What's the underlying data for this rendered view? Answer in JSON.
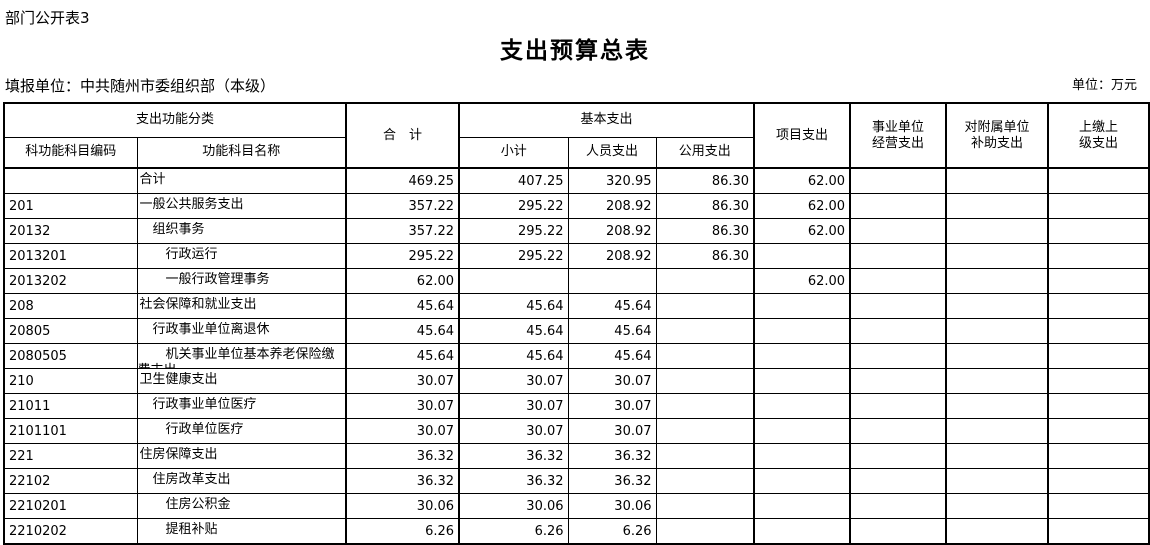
{
  "page": {
    "doc_label": "部门公开表3",
    "title": "支出预算总表",
    "reporting_unit": "填报单位：中共随州市委组织部（本级）",
    "unit_note": "单位：万元"
  },
  "table": {
    "header": {
      "func_class": "支出功能分类",
      "code": "科功能科目编码",
      "name": "功能科目名称",
      "total": "合　计",
      "basic": "基本支出",
      "subtotal": "小计",
      "personnel": "人员支出",
      "public": "公用支出",
      "project": "项目支出",
      "operating": "事业单位\n经营支出",
      "subsidy": "对附属单位\n补助支出",
      "upper": "上缴上\n级支出"
    },
    "rows": [
      {
        "code": "",
        "name": "合计",
        "indent": 0,
        "total": "469.25",
        "subtotal": "407.25",
        "personnel": "320.95",
        "public": "86.30",
        "project": "62.00",
        "operating": "",
        "subsidy": "",
        "upper": ""
      },
      {
        "code": "201",
        "name": "一般公共服务支出",
        "indent": 0,
        "total": "357.22",
        "subtotal": "295.22",
        "personnel": "208.92",
        "public": "86.30",
        "project": "62.00",
        "operating": "",
        "subsidy": "",
        "upper": ""
      },
      {
        "code": "20132",
        "name": "组织事务",
        "indent": 1,
        "total": "357.22",
        "subtotal": "295.22",
        "personnel": "208.92",
        "public": "86.30",
        "project": "62.00",
        "operating": "",
        "subsidy": "",
        "upper": ""
      },
      {
        "code": "2013201",
        "name": "行政运行",
        "indent": 2,
        "total": "295.22",
        "subtotal": "295.22",
        "personnel": "208.92",
        "public": "86.30",
        "project": "",
        "operating": "",
        "subsidy": "",
        "upper": ""
      },
      {
        "code": "2013202",
        "name": "一般行政管理事务",
        "indent": 2,
        "total": "62.00",
        "subtotal": "",
        "personnel": "",
        "public": "",
        "project": "62.00",
        "operating": "",
        "subsidy": "",
        "upper": ""
      },
      {
        "code": "208",
        "name": "社会保障和就业支出",
        "indent": 0,
        "total": "45.64",
        "subtotal": "45.64",
        "personnel": "45.64",
        "public": "",
        "project": "",
        "operating": "",
        "subsidy": "",
        "upper": ""
      },
      {
        "code": "20805",
        "name": "行政事业单位离退休",
        "indent": 1,
        "total": "45.64",
        "subtotal": "45.64",
        "personnel": "45.64",
        "public": "",
        "project": "",
        "operating": "",
        "subsidy": "",
        "upper": ""
      },
      {
        "code": "2080505",
        "name": "机关事业单位基本养老保险缴费支出",
        "indent": 2,
        "total": "45.64",
        "subtotal": "45.64",
        "personnel": "45.64",
        "public": "",
        "project": "",
        "operating": "",
        "subsidy": "",
        "upper": ""
      },
      {
        "code": "210",
        "name": "卫生健康支出",
        "indent": 0,
        "total": "30.07",
        "subtotal": "30.07",
        "personnel": "30.07",
        "public": "",
        "project": "",
        "operating": "",
        "subsidy": "",
        "upper": ""
      },
      {
        "code": "21011",
        "name": "行政事业单位医疗",
        "indent": 1,
        "total": "30.07",
        "subtotal": "30.07",
        "personnel": "30.07",
        "public": "",
        "project": "",
        "operating": "",
        "subsidy": "",
        "upper": ""
      },
      {
        "code": "2101101",
        "name": "行政单位医疗",
        "indent": 2,
        "total": "30.07",
        "subtotal": "30.07",
        "personnel": "30.07",
        "public": "",
        "project": "",
        "operating": "",
        "subsidy": "",
        "upper": ""
      },
      {
        "code": "221",
        "name": "住房保障支出",
        "indent": 0,
        "total": "36.32",
        "subtotal": "36.32",
        "personnel": "36.32",
        "public": "",
        "project": "",
        "operating": "",
        "subsidy": "",
        "upper": ""
      },
      {
        "code": "22102",
        "name": "住房改革支出",
        "indent": 1,
        "total": "36.32",
        "subtotal": "36.32",
        "personnel": "36.32",
        "public": "",
        "project": "",
        "operating": "",
        "subsidy": "",
        "upper": ""
      },
      {
        "code": "2210201",
        "name": "住房公积金",
        "indent": 2,
        "total": "30.06",
        "subtotal": "30.06",
        "personnel": "30.06",
        "public": "",
        "project": "",
        "operating": "",
        "subsidy": "",
        "upper": ""
      },
      {
        "code": "2210202",
        "name": "提租补贴",
        "indent": 2,
        "total": "6.26",
        "subtotal": "6.26",
        "personnel": "6.26",
        "public": "",
        "project": "",
        "operating": "",
        "subsidy": "",
        "upper": ""
      }
    ]
  }
}
